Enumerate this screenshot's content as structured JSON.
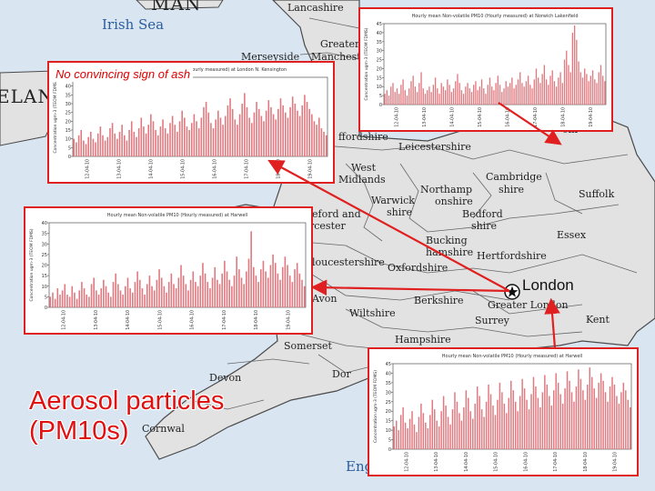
{
  "map": {
    "title_line1": "Aerosol particles",
    "title_line2": "(PM10s)",
    "note": "No convincing sign of ash",
    "london_label": "London",
    "colors": {
      "sea": "#d9e6f2",
      "land": "#e2e2e2",
      "border": "#4a4a4a",
      "arrow": "#e02020",
      "bars": "#e0797f",
      "panel_border": "#e02020"
    }
  },
  "places": {
    "irish_sea": "Irish Sea",
    "isle_of_man": "MAN",
    "ireland": "ELAN",
    "lancashire": "Lancashire",
    "greater_manchester_1": "Greater",
    "greater_manchester_2": "Manchester",
    "merseyside": "Merseyside",
    "staffordshire": "ffordshire",
    "leicestershire": "Leicestershire",
    "west_midlands_1": "West",
    "west_midlands_2": "Midlands",
    "northamptonshire_1": "Northamp",
    "northamptonshire_2": "onshire",
    "warwickshire_1": "Warwick",
    "warwickshire_2": "shire",
    "cambridgeshire_1": "Cambridge",
    "cambridgeshire_2": "shire",
    "suffolk": "Suffolk",
    "herefordshire_1": "eford and",
    "herefordshire_2": "rcester",
    "bedfordshire_1": "Bedford",
    "bedfordshire_2": "shire",
    "essex": "Essex",
    "buckinghamshire_1": "Bucking",
    "buckinghamshire_2": "hamshire",
    "hertfordshire": "Hertfordshire",
    "gloucestershire": "loucestershire",
    "oxfordshire": "Oxfordshire",
    "avon": "Avon",
    "berkshire": "Berkshire",
    "greater_london": "Greater London",
    "wiltshire": "Wiltshire",
    "surrey": "Surrey",
    "kent": "Kent",
    "somerset": "Somerset",
    "hampshire": "Hampshire",
    "devon": "Devon",
    "dorset": "Dor",
    "cornwall": "Cornwal",
    "norfolk_fragment": "olk",
    "england_fragment": "Eng"
  },
  "panels": [
    {
      "id": "norwich",
      "title": "Hourly mean Non-volatile PM10 (Hourly measured) at Norwich Lakenfield",
      "ylabel": "Concentration ugm-3 (TEOM FDMS)",
      "yticks": [
        "0",
        "5",
        "10",
        "15",
        "20",
        "25",
        "30",
        "35",
        "40",
        "45"
      ],
      "ymax": 45,
      "xticks": [
        "12-04-10",
        "13-04-10",
        "14-04-10",
        "15-04-10",
        "16-04-10",
        "17-04-10",
        "18-04-10",
        "19-04-10"
      ],
      "values": [
        6,
        8,
        5,
        10,
        12,
        7,
        9,
        6,
        11,
        14,
        8,
        5,
        9,
        13,
        16,
        10,
        7,
        12,
        18,
        9,
        6,
        8,
        10,
        7,
        11,
        15,
        9,
        6,
        12,
        10,
        8,
        14,
        11,
        7,
        9,
        13,
        17,
        12,
        8,
        6,
        10,
        12,
        9,
        7,
        11,
        13,
        8,
        10,
        14,
        9,
        6,
        11,
        15,
        10,
        8,
        12,
        16,
        11,
        7,
        9,
        13,
        10,
        12,
        15,
        9,
        11,
        14,
        18,
        12,
        10,
        13,
        16,
        11,
        9,
        14,
        20,
        15,
        12,
        17,
        22,
        14,
        11,
        16,
        19,
        13,
        10,
        15,
        18,
        12,
        25,
        30,
        22,
        18,
        40,
        44,
        36,
        24,
        18,
        15,
        20,
        17,
        13,
        16,
        19,
        14,
        12,
        18,
        22,
        16,
        13
      ]
    },
    {
      "id": "kensington",
      "title": "Hourly mean Non-volatile PM10 (Hourly measured) at London N. Kensington",
      "ylabel": "Concentration ugm-3 (TEOM FDMS)",
      "yticks": [
        "0",
        "5",
        "10",
        "15",
        "20",
        "25",
        "30",
        "35",
        "40",
        "45"
      ],
      "ymax": 45,
      "xticks": [
        "12-04-10",
        "13-04-10",
        "14-04-10",
        "15-04-10",
        "16-04-10",
        "17-04-10",
        "18-04-10",
        "19-04-10"
      ],
      "values": [
        10,
        8,
        12,
        15,
        9,
        7,
        11,
        14,
        10,
        8,
        13,
        17,
        12,
        9,
        11,
        16,
        19,
        13,
        10,
        14,
        18,
        12,
        9,
        15,
        20,
        14,
        11,
        16,
        22,
        17,
        13,
        18,
        24,
        20,
        15,
        12,
        17,
        21,
        16,
        13,
        19,
        23,
        18,
        14,
        20,
        26,
        22,
        17,
        15,
        19,
        24,
        20,
        16,
        22,
        28,
        31,
        25,
        19,
        16,
        21,
        26,
        22,
        18,
        23,
        29,
        33,
        27,
        21,
        18,
        24,
        30,
        36,
        28,
        22,
        19,
        25,
        31,
        27,
        23,
        20,
        26,
        32,
        28,
        24,
        21,
        27,
        33,
        29,
        25,
        22,
        28,
        34,
        30,
        26,
        23,
        29,
        35,
        31,
        27,
        24,
        20,
        18,
        22,
        16,
        14,
        12
      ]
    },
    {
      "id": "harwell",
      "title": "Hourly mean Non-volatile PM10 (Hourly measured) at Harwell",
      "ylabel": "Concentration ugm-3 (TEOM FDMS)",
      "yticks": [
        "0",
        "5",
        "10",
        "15",
        "20",
        "25",
        "30",
        "35",
        "40"
      ],
      "ymax": 40,
      "xticks": [
        "12-04-10",
        "13-04-10",
        "14-04-10",
        "15-04-10",
        "16-04-10",
        "17-04-10",
        "18-04-10",
        "19-04-10"
      ],
      "values": [
        5,
        7,
        4,
        9,
        6,
        8,
        11,
        6,
        5,
        10,
        7,
        4,
        8,
        12,
        9,
        6,
        5,
        11,
        14,
        8,
        6,
        9,
        13,
        10,
        7,
        5,
        12,
        16,
        11,
        8,
        6,
        10,
        14,
        9,
        7,
        12,
        17,
        13,
        9,
        6,
        11,
        15,
        10,
        8,
        13,
        18,
        14,
        10,
        7,
        12,
        16,
        11,
        9,
        14,
        20,
        15,
        11,
        8,
        13,
        17,
        12,
        10,
        15,
        21,
        16,
        12,
        9,
        14,
        19,
        13,
        11,
        16,
        22,
        17,
        13,
        10,
        15,
        24,
        18,
        14,
        11,
        17,
        23,
        36,
        19,
        15,
        12,
        18,
        22,
        17,
        14,
        20,
        25,
        21,
        16,
        13,
        19,
        24,
        20,
        15,
        12,
        18,
        21,
        16,
        13,
        10
      ]
    },
    {
      "id": "harwell_south",
      "title": "Hourly mean Non-volatile PM10 (Hourly measured) at Harwell",
      "ylabel": "Concentration ugm-3 (TEOM FDMS)",
      "yticks": [
        "0",
        "5",
        "10",
        "15",
        "20",
        "25",
        "30",
        "35",
        "40",
        "45"
      ],
      "ymax": 45,
      "xticks": [
        "12-04-10",
        "13-04-10",
        "14-04-10",
        "15-04-10",
        "16-04-10",
        "17-04-10",
        "18-04-10",
        "19-04-10"
      ],
      "values": [
        12,
        15,
        10,
        18,
        22,
        14,
        11,
        16,
        20,
        13,
        9,
        17,
        24,
        19,
        14,
        11,
        18,
        26,
        21,
        15,
        12,
        20,
        28,
        23,
        17,
        13,
        21,
        30,
        25,
        19,
        15,
        22,
        31,
        27,
        20,
        16,
        24,
        33,
        28,
        21,
        17,
        25,
        34,
        29,
        23,
        18,
        26,
        35,
        30,
        24,
        19,
        27,
        36,
        31,
        25,
        20,
        28,
        37,
        32,
        26,
        21,
        29,
        38,
        33,
        27,
        22,
        30,
        39,
        34,
        28,
        23,
        31,
        40,
        35,
        29,
        24,
        32,
        41,
        36,
        30,
        25,
        33,
        42,
        37,
        31,
        26,
        34,
        43,
        38,
        32,
        27,
        35,
        40,
        36,
        30,
        25,
        33,
        38,
        34,
        28,
        24,
        30,
        35,
        31,
        26,
        22
      ]
    }
  ]
}
